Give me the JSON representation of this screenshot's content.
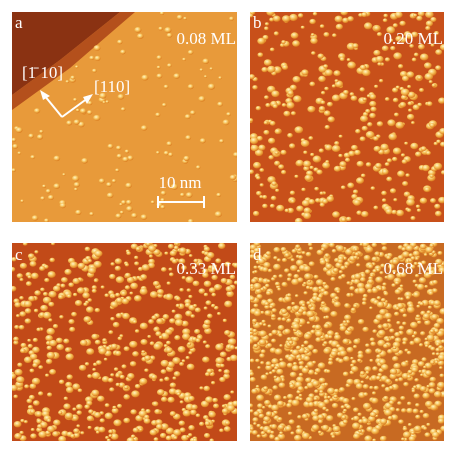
{
  "panels": [
    {
      "label": "a",
      "coverage": "0.08 ML",
      "directions": [
        "[1̄ 10]",
        "[110]"
      ],
      "scale_bar": "10 nm"
    },
    {
      "label": "b",
      "coverage": "0.20 ML"
    },
    {
      "label": "c",
      "coverage": "0.33 ML"
    },
    {
      "label": "d",
      "coverage": "0.68 ML"
    }
  ]
}
